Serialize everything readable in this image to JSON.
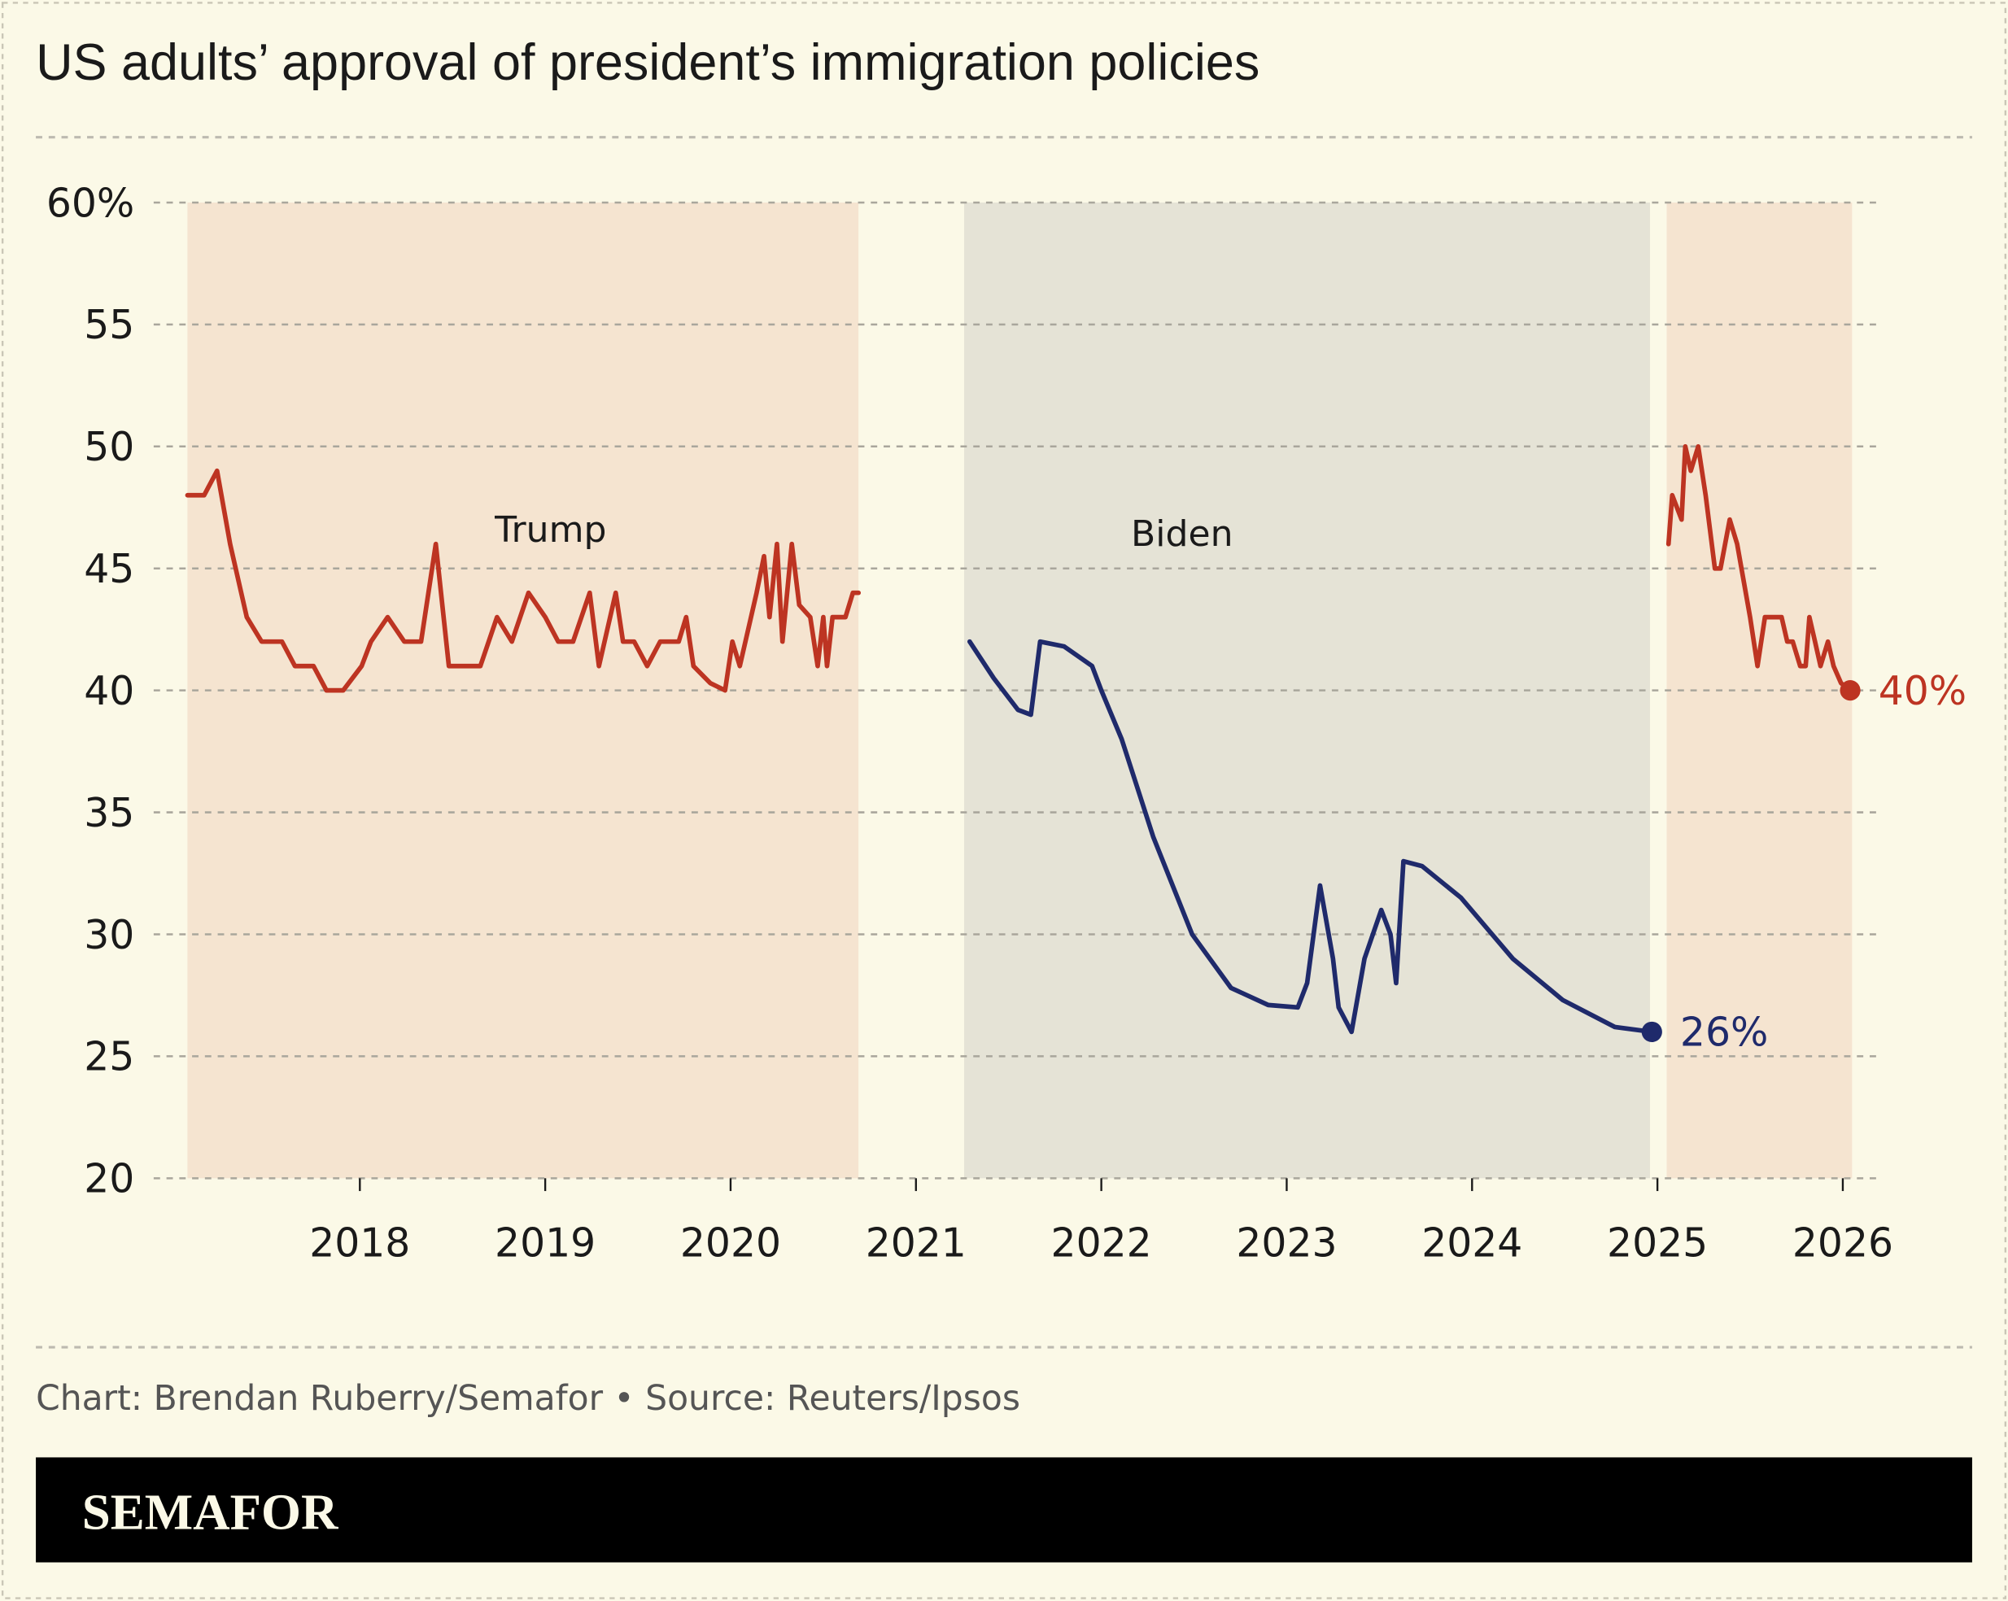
{
  "chart_data": {
    "type": "line",
    "title": "US adults’ approval of president’s immigration policies",
    "xlabel": "",
    "ylabel": "",
    "ylim": [
      20,
      60
    ],
    "xlim": [
      2017.0,
      2026.2
    ],
    "y_ticks": [
      "60%",
      "55",
      "50",
      "45",
      "40",
      "35",
      "30",
      "25",
      "20"
    ],
    "y_tick_values": [
      60,
      55,
      50,
      45,
      40,
      35,
      30,
      25,
      20
    ],
    "x_ticks": [
      "2018",
      "2019",
      "2020",
      "2021",
      "2022",
      "2023",
      "2024",
      "2025",
      "2026"
    ],
    "x_tick_values": [
      2018,
      2019,
      2020,
      2021,
      2022,
      2023,
      2024,
      2025,
      2026
    ],
    "grid": "horizontal dashed",
    "presidency_bands": [
      {
        "label": "Trump",
        "start": 2017.07,
        "end": 2020.69,
        "color": "#f5e4d0"
      },
      {
        "label": "Biden",
        "start": 2021.26,
        "end": 2024.96,
        "color": "#e5e3d6"
      },
      {
        "label": "",
        "start": 2025.05,
        "end": 2026.05,
        "color": "#f5e4d0"
      }
    ],
    "series": [
      {
        "color": "#bd3422",
        "x": [
          2017.07,
          2017.16,
          2017.23,
          2017.3,
          2017.39,
          2017.47,
          2017.58,
          2017.65,
          2017.75,
          2017.82,
          2017.91,
          2018.01,
          2018.06,
          2018.15,
          2018.24,
          2018.33,
          2018.41,
          2018.48,
          2018.65,
          2018.74,
          2018.82,
          2018.91,
          2019.0,
          2019.07,
          2019.15,
          2019.24,
          2019.29,
          2019.38,
          2019.42,
          2019.48,
          2019.55,
          2019.62,
          2019.72,
          2019.76,
          2019.8,
          2019.89,
          2019.97,
          2020.01,
          2020.05,
          2020.14,
          2020.18,
          2020.21,
          2020.25,
          2020.28,
          2020.33,
          2020.37,
          2020.43,
          2020.47,
          2020.5,
          2020.52,
          2020.55,
          2020.62,
          2020.66,
          2020.69
        ],
        "y": [
          48,
          48,
          49,
          46,
          43,
          42,
          42,
          41,
          41,
          40,
          40,
          41,
          42,
          43,
          42,
          42,
          46,
          41,
          41,
          43,
          42,
          44,
          43,
          42,
          42,
          44,
          41,
          44,
          42,
          42,
          41,
          42,
          42,
          43,
          41,
          40.3,
          40,
          42,
          41,
          44,
          45.5,
          43,
          46,
          42,
          46,
          43.5,
          43,
          41,
          43,
          41,
          43,
          43,
          44,
          44
        ]
      },
      {
        "color": "#1f2a6b",
        "x": [
          2021.29,
          2021.42,
          2021.55,
          2021.62,
          2021.67,
          2021.8,
          2021.95,
          2022.0,
          2022.11,
          2022.28,
          2022.49,
          2022.7,
          2022.9,
          2023.06,
          2023.11,
          2023.18,
          2023.25,
          2023.28,
          2023.35,
          2023.42,
          2023.51,
          2023.56,
          2023.59,
          2023.63,
          2023.73,
          2023.94,
          2024.22,
          2024.49,
          2024.77,
          2024.97
        ],
        "y": [
          42,
          40.5,
          39.2,
          39,
          42,
          41.8,
          41,
          40,
          38,
          34,
          30,
          27.8,
          27.1,
          27,
          28,
          32,
          29,
          27,
          26,
          29,
          31,
          30,
          28,
          33,
          32.8,
          31.5,
          29,
          27.3,
          26.2,
          26
        ],
        "end_label": "26%"
      },
      {
        "color": "#bd3422",
        "x": [
          2025.06,
          2025.08,
          2025.13,
          2025.15,
          2025.18,
          2025.22,
          2025.26,
          2025.31,
          2025.34,
          2025.39,
          2025.43,
          2025.5,
          2025.54,
          2025.58,
          2025.67,
          2025.7,
          2025.73,
          2025.77,
          2025.8,
          2025.82,
          2025.85,
          2025.88,
          2025.92,
          2025.95,
          2025.99,
          2026.04
        ],
        "y": [
          46,
          48,
          47,
          50,
          49,
          50,
          48,
          45,
          45,
          47,
          46,
          43,
          41,
          43,
          43,
          42,
          42,
          41,
          41,
          43,
          42,
          41,
          42,
          41,
          40.3,
          40
        ],
        "end_label": "40%"
      }
    ],
    "annotations": [
      "Trump",
      "Biden"
    ]
  },
  "footer": {
    "credit": "Chart: Brendan Ruberry/Semafor • Source: Reuters/Ipsos",
    "brand": "SEMAFOR"
  },
  "colors": {
    "background": "#fbf9e7",
    "trump": "#bd3422",
    "biden": "#1f2a6b",
    "brand_bar": "#000000"
  }
}
